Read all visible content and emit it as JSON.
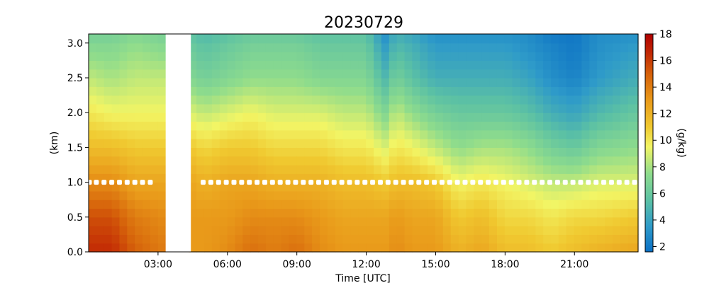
{
  "chart_data": {
    "type": "heatmap",
    "title": "20230729",
    "xlabel": "Time [UTC]",
    "ylabel": "(km)",
    "colorbar_label": "(g/kg)",
    "x_tick_labels": [
      "03:00",
      "06:00",
      "09:00",
      "12:00",
      "15:00",
      "18:00",
      "21:00"
    ],
    "x_tick_hours": [
      3,
      6,
      9,
      12,
      15,
      18,
      21
    ],
    "xlim_hours": [
      0,
      23.75
    ],
    "y_ticks": [
      0.0,
      0.5,
      1.0,
      1.5,
      2.0,
      2.5,
      3.0
    ],
    "y_tick_labels": [
      "0.0",
      "0.5",
      "1.0",
      "1.5",
      "2.0",
      "2.5",
      "3.0"
    ],
    "ylim_km": [
      0,
      3.13
    ],
    "colorbar_ticks": [
      2,
      4,
      6,
      8,
      10,
      12,
      14,
      16,
      18
    ],
    "colorbar_tick_labels": [
      "2",
      "4",
      "6",
      "8",
      "10",
      "12",
      "14",
      "16",
      "18"
    ],
    "clim": [
      1.6,
      18
    ],
    "colormap_stops": [
      {
        "v": 1.6,
        "color": "#0a6fc4"
      },
      {
        "v": 3.5,
        "color": "#2e9ac9"
      },
      {
        "v": 5.5,
        "color": "#5cc1a4"
      },
      {
        "v": 7.5,
        "color": "#8fdc8c"
      },
      {
        "v": 9.5,
        "color": "#f2f565"
      },
      {
        "v": 11.0,
        "color": "#f0c930"
      },
      {
        "v": 13.0,
        "color": "#e99a1a"
      },
      {
        "v": 15.0,
        "color": "#d5600a"
      },
      {
        "v": 16.5,
        "color": "#c22a05"
      },
      {
        "v": 18.0,
        "color": "#b00000"
      }
    ],
    "time_step_hours": 0.333,
    "height_step_km": 0.125,
    "missing_interval_hours": [
      3.33,
      4.42
    ],
    "heights_km": [
      0.0,
      0.5,
      1.0,
      1.5,
      2.0,
      2.5,
      3.0,
      3.13
    ],
    "profile_times_hours": [
      0.0,
      1.0,
      2.0,
      3.33,
      4.42,
      5.0,
      6.0,
      7.0,
      8.0,
      9.0,
      10.0,
      11.0,
      12.0,
      12.8,
      13.3,
      14.0,
      15.0,
      16.0,
      17.0,
      18.0,
      19.0,
      20.0,
      21.0,
      22.0,
      23.75
    ],
    "profiles_g_per_kg": [
      [
        16.5,
        15.5,
        13.5,
        11.5,
        10.0,
        8.5,
        7.0,
        6.5
      ],
      [
        16.5,
        15.5,
        13.5,
        11.5,
        9.5,
        8.0,
        7.0,
        6.5
      ],
      [
        15.0,
        14.0,
        12.5,
        11.0,
        9.5,
        8.5,
        7.5,
        7.0
      ],
      [
        14.0,
        13.5,
        12.5,
        11.0,
        9.5,
        8.5,
        7.0,
        6.5
      ],
      [
        13.0,
        13.0,
        12.5,
        11.0,
        9.0,
        7.0,
        6.0,
        5.5
      ],
      [
        13.0,
        13.0,
        12.0,
        10.5,
        8.5,
        6.5,
        5.5,
        5.0
      ],
      [
        13.5,
        13.0,
        12.5,
        11.0,
        9.0,
        7.0,
        6.0,
        5.5
      ],
      [
        14.5,
        13.5,
        12.5,
        11.0,
        9.5,
        7.5,
        6.5,
        6.0
      ],
      [
        14.0,
        13.5,
        12.0,
        10.5,
        9.0,
        7.5,
        6.5,
        6.0
      ],
      [
        14.5,
        13.5,
        12.0,
        10.5,
        9.0,
        7.5,
        6.5,
        6.0
      ],
      [
        13.5,
        13.0,
        12.0,
        10.5,
        9.0,
        7.0,
        6.0,
        5.5
      ],
      [
        13.0,
        12.5,
        11.5,
        10.0,
        8.5,
        7.0,
        6.0,
        5.5
      ],
      [
        13.0,
        12.5,
        11.5,
        10.0,
        8.5,
        7.0,
        6.0,
        5.5
      ],
      [
        13.0,
        12.5,
        11.0,
        9.0,
        7.0,
        5.0,
        3.5,
        3.0
      ],
      [
        13.5,
        13.0,
        11.5,
        10.0,
        8.5,
        6.5,
        5.0,
        4.5
      ],
      [
        13.0,
        12.5,
        11.5,
        9.5,
        7.5,
        5.5,
        4.5,
        4.0
      ],
      [
        13.0,
        12.5,
        11.0,
        8.5,
        6.5,
        4.5,
        3.5,
        3.0
      ],
      [
        12.0,
        11.0,
        9.5,
        7.5,
        6.0,
        4.5,
        3.5,
        3.0
      ],
      [
        12.5,
        11.5,
        10.0,
        8.0,
        6.0,
        4.5,
        3.5,
        3.0
      ],
      [
        11.5,
        10.5,
        9.5,
        8.0,
        6.0,
        4.5,
        3.5,
        3.0
      ],
      [
        11.5,
        10.5,
        9.0,
        7.5,
        5.5,
        4.0,
        3.0,
        3.0
      ],
      [
        11.0,
        10.0,
        8.5,
        6.5,
        4.5,
        3.0,
        2.5,
        2.0
      ],
      [
        11.5,
        10.5,
        8.5,
        6.0,
        4.0,
        2.5,
        2.0,
        2.0
      ],
      [
        12.0,
        10.5,
        9.0,
        7.0,
        5.0,
        3.5,
        3.0,
        3.0
      ],
      [
        12.5,
        11.0,
        9.0,
        7.5,
        6.0,
        4.5,
        3.5,
        3.0
      ]
    ],
    "marker_height_km": 1.0,
    "marker_color": "#ffffff",
    "marker_step_hours": 0.333,
    "marker_intervals_hours": [
      [
        0.0,
        2.9
      ],
      [
        4.95,
        23.75
      ]
    ]
  }
}
